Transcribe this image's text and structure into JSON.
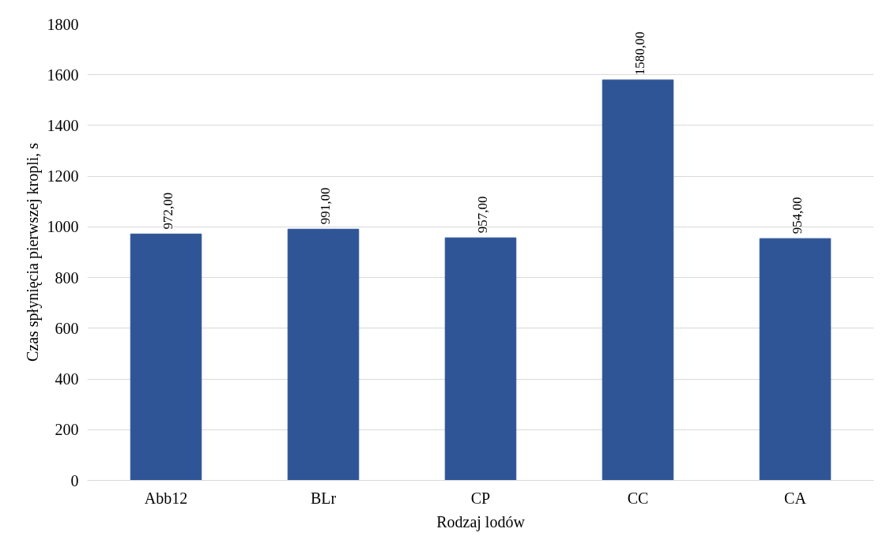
{
  "chart_data": {
    "type": "bar",
    "xlabel": "Rodzaj lodów",
    "ylabel": "Czas spłynięcia pierwszej kropli, s",
    "categories": [
      "Abb12",
      "BLr",
      "CP",
      "CC",
      "CA"
    ],
    "values": [
      972,
      991,
      957,
      1580,
      954
    ],
    "value_labels": [
      "972,00",
      "991,00",
      "957,00",
      "1580,00",
      "954,00"
    ],
    "color": "#2f5597",
    "ylim": [
      0,
      1800
    ],
    "yticks": [
      0,
      200,
      400,
      600,
      800,
      1000,
      1200,
      1400,
      1600,
      1800
    ],
    "grid": "y"
  }
}
